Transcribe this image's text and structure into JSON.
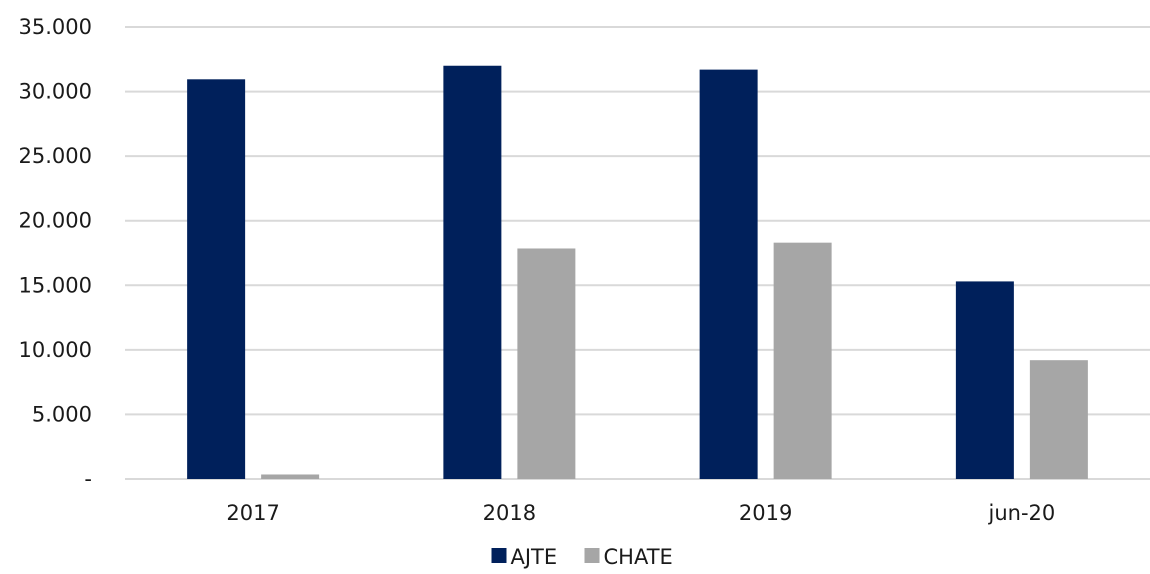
{
  "chart_data": {
    "type": "bar",
    "categories": [
      "2017",
      "2018",
      "2019",
      "jun-20"
    ],
    "series": [
      {
        "name": "AJTE",
        "values": [
          30950,
          32000,
          31700,
          15300
        ],
        "color": "#00205b"
      },
      {
        "name": "CHATE",
        "values": [
          350,
          17850,
          18300,
          9200
        ],
        "color": "#a6a6a6"
      }
    ],
    "y_ticks": [
      {
        "value": 0,
        "label": "-"
      },
      {
        "value": 5000,
        "label": "5.000"
      },
      {
        "value": 10000,
        "label": "10.000"
      },
      {
        "value": 15000,
        "label": "15.000"
      },
      {
        "value": 20000,
        "label": "20.000"
      },
      {
        "value": 25000,
        "label": "25.000"
      },
      {
        "value": 30000,
        "label": "30.000"
      },
      {
        "value": 35000,
        "label": "35.000"
      }
    ],
    "ylim": [
      0,
      35000
    ],
    "grid": true,
    "gridline_color": "#d9d9d9",
    "legend_position": "bottom"
  }
}
